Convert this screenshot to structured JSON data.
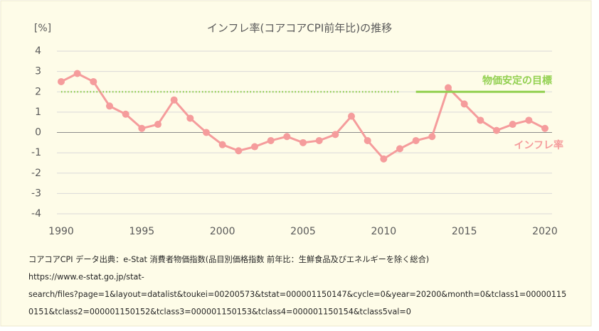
{
  "chart_data": {
    "type": "line",
    "title": "インフレ率(コアコアCPI前年比)の推移",
    "y_unit": "[%]",
    "x": [
      1990,
      1991,
      1992,
      1993,
      1994,
      1995,
      1996,
      1997,
      1998,
      1999,
      2000,
      2001,
      2002,
      2003,
      2004,
      2005,
      2006,
      2007,
      2008,
      2009,
      2010,
      2011,
      2012,
      2013,
      2014,
      2015,
      2016,
      2017,
      2018,
      2019,
      2020
    ],
    "xlim": [
      1990,
      2020
    ],
    "xticks": [
      1990,
      1995,
      2000,
      2005,
      2010,
      2015,
      2020
    ],
    "ylim": [
      -4,
      4
    ],
    "yticks": [
      -4,
      -3,
      -2,
      -1,
      0,
      1,
      2,
      3,
      4
    ],
    "grid": true,
    "series": [
      {
        "name": "インフレ率",
        "color": "#f59c9c",
        "dash": "solid",
        "markers": true,
        "values": [
          2.5,
          2.9,
          2.5,
          1.3,
          0.9,
          0.2,
          0.4,
          1.6,
          0.7,
          0.0,
          -0.6,
          -0.9,
          -0.7,
          -0.4,
          -0.2,
          -0.5,
          -0.4,
          -0.1,
          0.8,
          -0.4,
          -1.3,
          -0.8,
          -0.4,
          -0.2,
          2.2,
          1.4,
          0.6,
          0.1,
          0.4,
          0.6,
          0.2
        ]
      },
      {
        "name": "物価安定の目標",
        "color": "#92d050",
        "dash": "solid",
        "markers": false,
        "values": [
          null,
          null,
          null,
          null,
          null,
          null,
          null,
          null,
          null,
          null,
          null,
          null,
          null,
          null,
          null,
          null,
          null,
          null,
          null,
          null,
          null,
          null,
          2,
          2,
          2,
          2,
          2,
          2,
          2,
          2,
          2
        ]
      },
      {
        "color": "#92d050",
        "dash": "dotted",
        "markers": false,
        "values": [
          2,
          2,
          2,
          2,
          2,
          2,
          2,
          2,
          2,
          2,
          2,
          2,
          2,
          2,
          2,
          2,
          2,
          2,
          2,
          2,
          2,
          2,
          null,
          null,
          null,
          null,
          null,
          null,
          null,
          null,
          null
        ]
      }
    ],
    "source": [
      "コアコアCPI データ出典：e-Stat 消費者物価指数(品目別価格指数 前年比：生鮮食品及びエネルギーを除く総合)",
      "https://www.e-stat.go.jp/stat-",
      "search/files?page=1&layout=datalist&toukei=00200573&tstat=000001150147&cycle=0&year=20200&month=0&tclass1=00000115",
      "0151&tclass2=000001150152&tclass3=000001150153&tclass4=000001150154&tclass5val=0"
    ]
  }
}
